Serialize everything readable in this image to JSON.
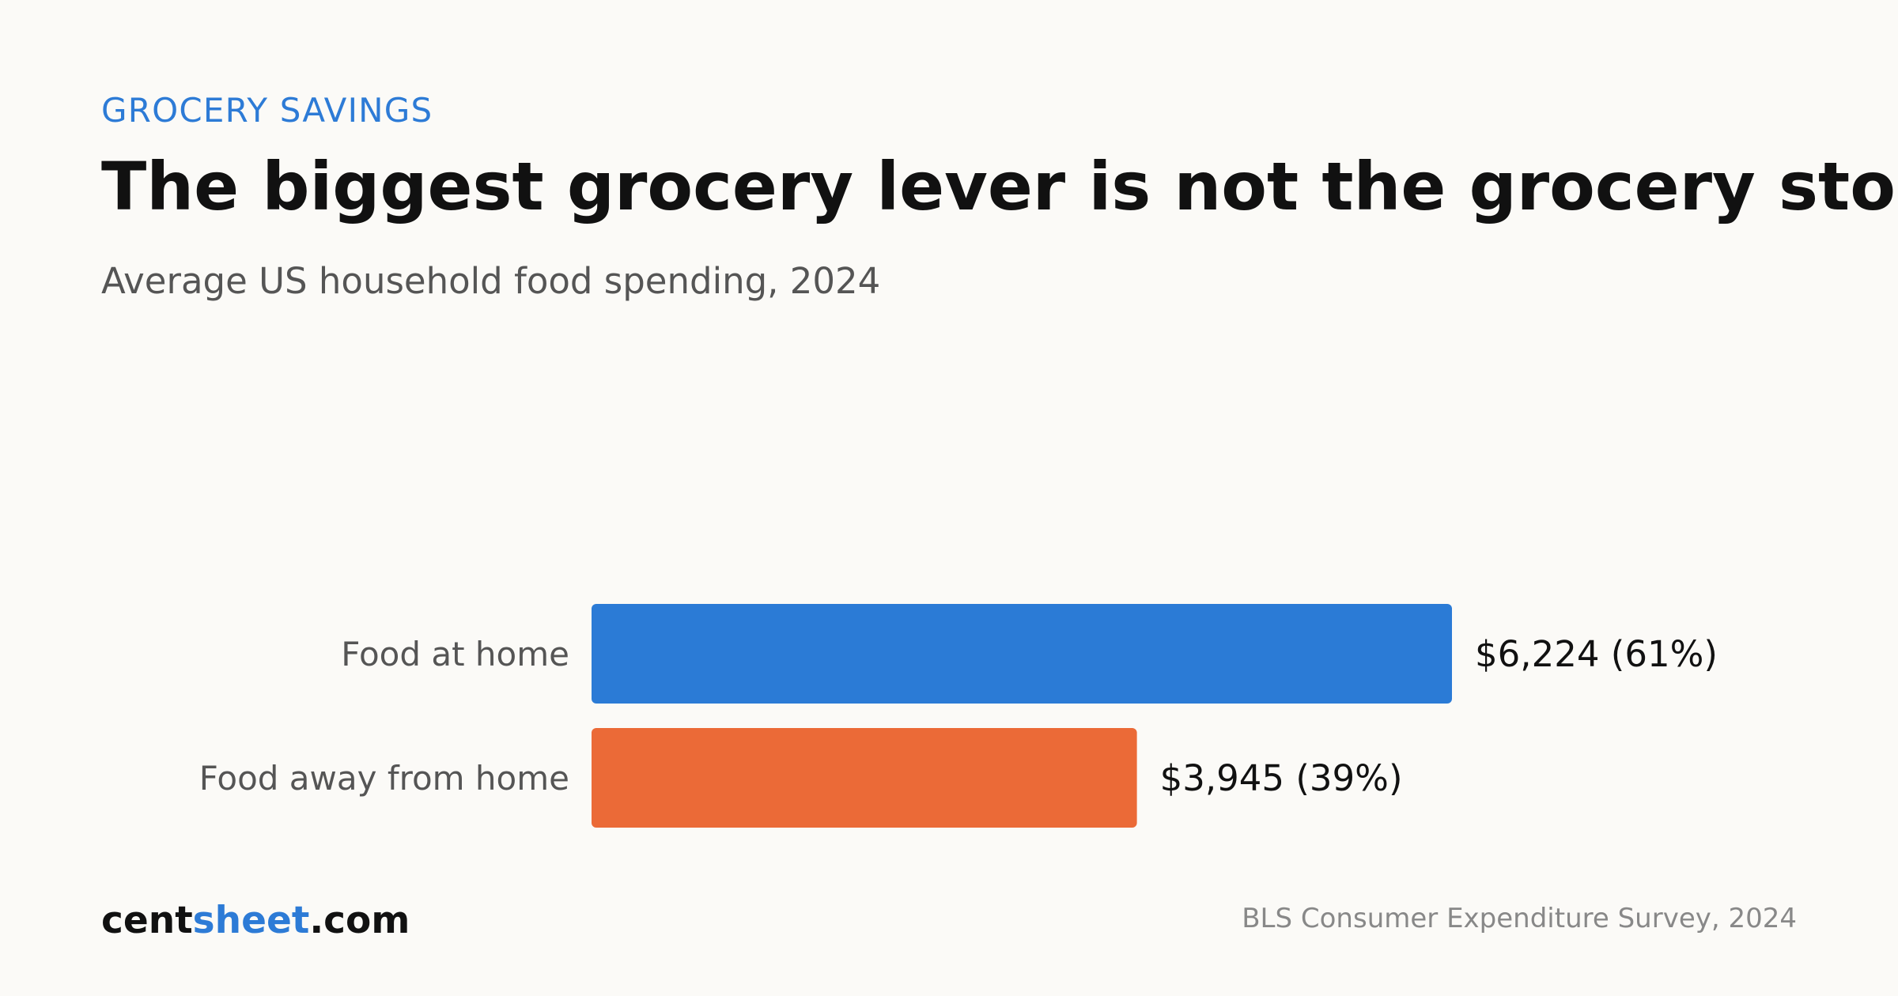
{
  "header": {
    "eyebrow": "GROCERY SAVINGS",
    "title": "The biggest grocery lever is not the grocery store",
    "subtitle": "Average US household food spending, 2024"
  },
  "footer": {
    "brand_part1": "cent",
    "brand_part2": "sheet",
    "brand_part3": ".com",
    "source": "BLS Consumer Expenditure Survey, 2024"
  },
  "colors": {
    "accent": "#2d7bd6",
    "orange": "#eb6a37",
    "background": "#fbfaf7"
  },
  "chart_data": {
    "type": "bar",
    "orientation": "horizontal",
    "categories": [
      "Food at home",
      "Food away from home"
    ],
    "values": [
      6224,
      3945
    ],
    "percentages": [
      61,
      39
    ],
    "labels": [
      "$6,224 (61%)",
      "$3,945 (39%)"
    ],
    "colors": [
      "#2b7bd6",
      "#eb6a37"
    ],
    "xlim": [
      0,
      6224
    ],
    "grid": false,
    "title": "",
    "xlabel": "",
    "ylabel": ""
  }
}
